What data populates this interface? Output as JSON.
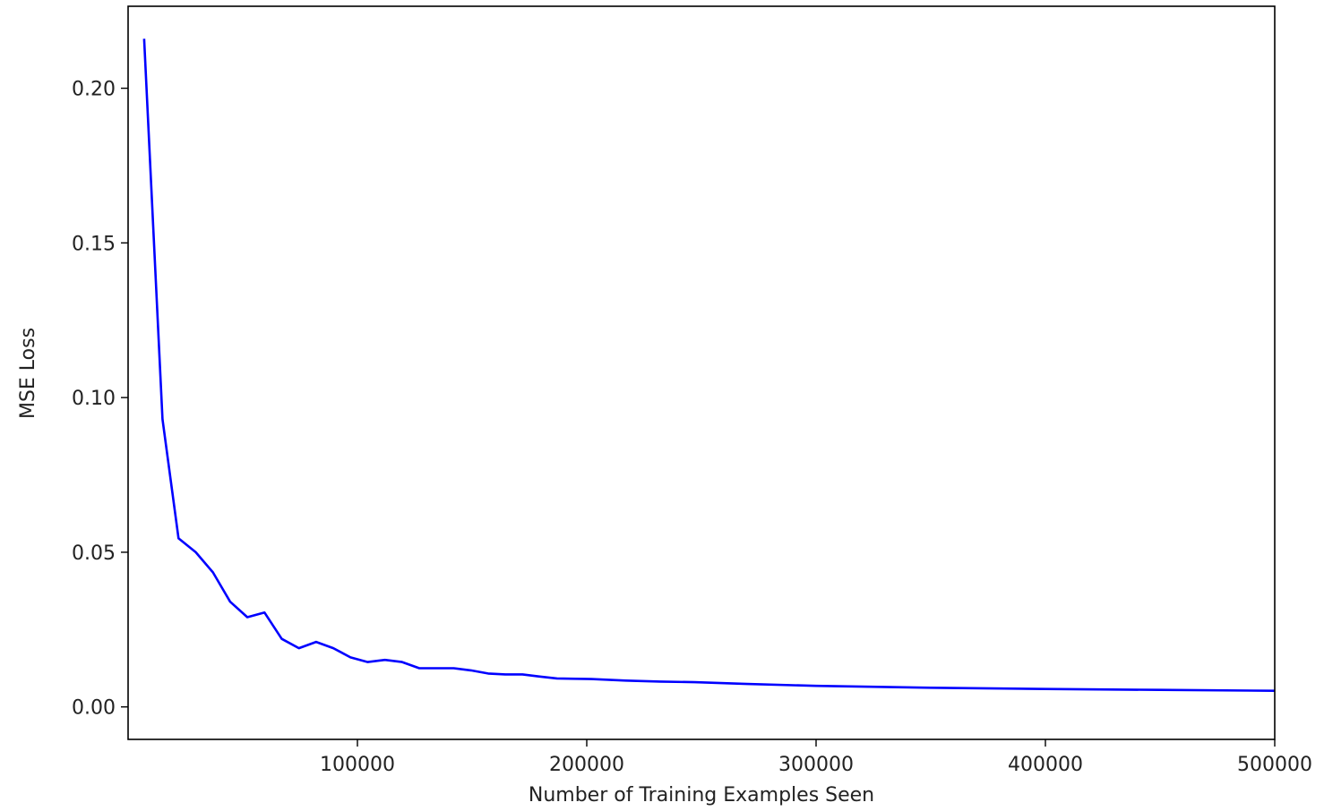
{
  "chart_data": {
    "type": "line",
    "title": "",
    "xlabel": "Number of Training Examples Seen",
    "ylabel": "MSE Loss",
    "xlim": [
      0,
      500000
    ],
    "ylim": [
      -0.0105,
      0.2265
    ],
    "xticks": [
      100000,
      200000,
      300000,
      400000,
      500000
    ],
    "xtick_labels": [
      "100000",
      "200000",
      "300000",
      "400000",
      "500000"
    ],
    "yticks": [
      0.0,
      0.05,
      0.1,
      0.15,
      0.2
    ],
    "ytick_labels": [
      "0.00",
      "0.05",
      "0.10",
      "0.15",
      "0.20"
    ],
    "grid": false,
    "series": [
      {
        "color": "#0000ff",
        "x": [
          7000,
          15000,
          22000,
          29500,
          37000,
          44500,
          52000,
          59500,
          67000,
          74500,
          82000,
          89500,
          97000,
          104500,
          112000,
          119500,
          127000,
          134500,
          142000,
          149500,
          157000,
          164500,
          172000,
          179500,
          187000,
          202000,
          217000,
          232000,
          247000,
          270000,
          300000,
          350000,
          400000,
          450000,
          500000
        ],
        "y": [
          0.216,
          0.093,
          0.0545,
          0.05,
          0.0435,
          0.034,
          0.029,
          0.0305,
          0.022,
          0.019,
          0.021,
          0.019,
          0.016,
          0.0145,
          0.0152,
          0.0145,
          0.0125,
          0.0125,
          0.0125,
          0.0118,
          0.0108,
          0.0105,
          0.0105,
          0.0098,
          0.0092,
          0.009,
          0.0085,
          0.0082,
          0.008,
          0.0074,
          0.0068,
          0.0062,
          0.0058,
          0.0055,
          0.0052
        ]
      }
    ]
  }
}
